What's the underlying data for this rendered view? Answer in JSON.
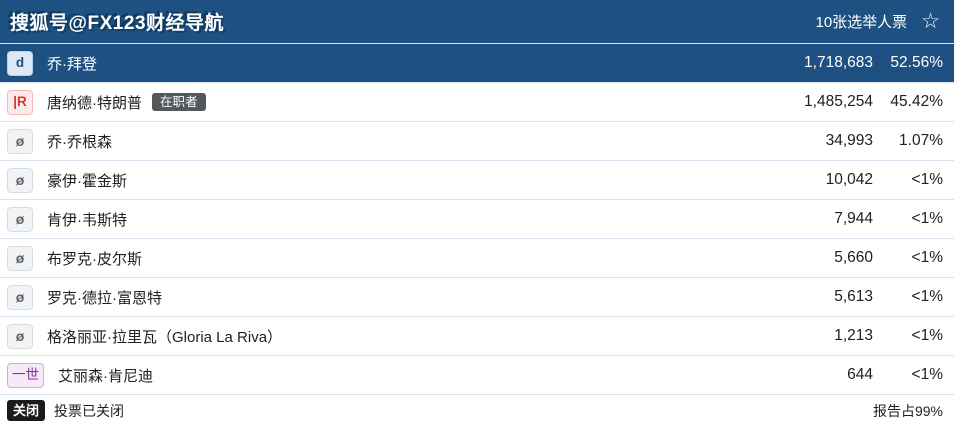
{
  "header": {
    "watermark": "搜狐号@FX123财经导航",
    "electoral_votes": "10张选举人票",
    "star_icon": "star-outline",
    "star_glyph": "☆"
  },
  "colors": {
    "header_bg": "#1e5181",
    "winner_row_bg": "#1e5181",
    "row_separator": "#d6e3f0",
    "dem_badge_text": "#1e5181",
    "rep_badge_text": "#e0342e",
    "other_badge_text": "#5f6368",
    "purple_badge_text": "#8c2ba6",
    "incumbent_badge_bg": "#54585b",
    "closed_badge_bg": "#1b1b1b"
  },
  "candidates": [
    {
      "badge": "d",
      "badge_type": "dem",
      "name": "乔·拜登",
      "votes": "1,718,683",
      "pct": "52.56%",
      "winner": true
    },
    {
      "badge": "|R",
      "badge_type": "rep",
      "name": "唐纳德·特朗普",
      "tag": "在职者",
      "votes": "1,485,254",
      "pct": "45.42%",
      "winner": false
    },
    {
      "badge": "ø",
      "badge_type": "other",
      "name": "乔·乔根森",
      "votes": "34,993",
      "pct": "1.07%",
      "winner": false
    },
    {
      "badge": "ø",
      "badge_type": "other",
      "name": "豪伊·霍金斯",
      "votes": "10,042",
      "pct": "<1%",
      "winner": false
    },
    {
      "badge": "ø",
      "badge_type": "other",
      "name": "肯伊·韦斯特",
      "votes": "7,944",
      "pct": "<1%",
      "winner": false
    },
    {
      "badge": "ø",
      "badge_type": "other",
      "name": "布罗克·皮尔斯",
      "votes": "5,660",
      "pct": "<1%",
      "winner": false
    },
    {
      "badge": "ø",
      "badge_type": "other",
      "name": "罗克·德拉·富恩特",
      "votes": "5,613",
      "pct": "<1%",
      "winner": false
    },
    {
      "badge": "ø",
      "badge_type": "other",
      "name": "格洛丽亚·拉里瓦（Gloria La Riva）",
      "votes": "1,213",
      "pct": "<1%",
      "winner": false
    },
    {
      "badge": "一世",
      "badge_type": "purple",
      "name": "艾丽森·肯尼迪",
      "votes": "644",
      "pct": "<1%",
      "winner": false
    }
  ],
  "footer": {
    "status_badge": "关闭",
    "status_text": "投票已关闭",
    "reporting": "报告占99%"
  }
}
